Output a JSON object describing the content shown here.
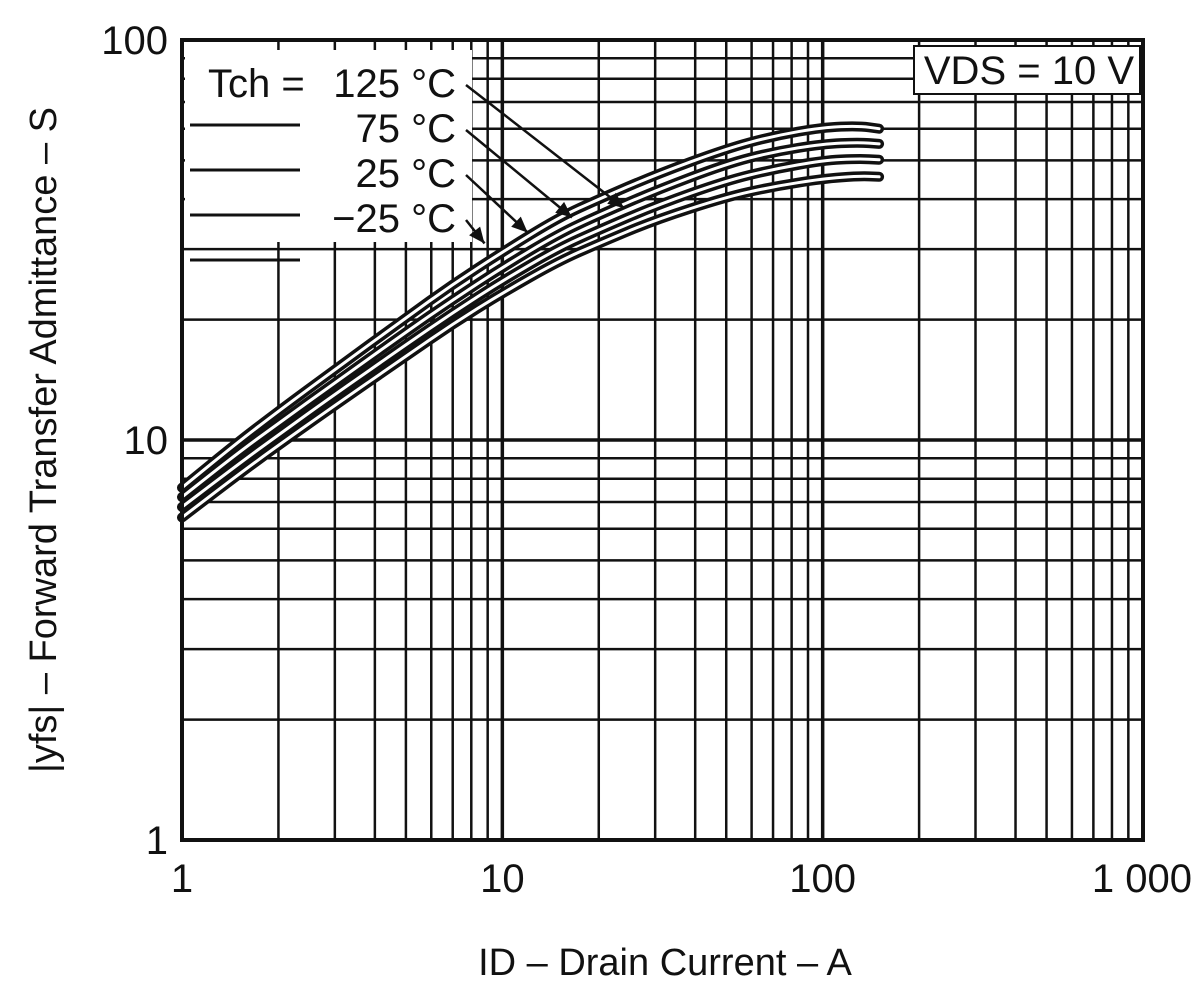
{
  "chart_data": {
    "type": "line",
    "title": "",
    "xlabel": "ID – Drain Current – A",
    "ylabel": "|yfs| – Forward Transfer Admittance – S",
    "x_scale": "log",
    "y_scale": "log",
    "xlim": [
      1,
      1000
    ],
    "ylim": [
      1,
      100
    ],
    "x_ticks": [
      1,
      10,
      100,
      1000
    ],
    "x_tick_labels": [
      "1",
      "10",
      "100",
      "1 000"
    ],
    "y_ticks": [
      1,
      10,
      100
    ],
    "y_tick_labels": [
      "1",
      "10",
      "100"
    ],
    "grid": true,
    "condition": "VDS = 10 V",
    "legend_title": "Tch =",
    "legend_placement": "top-left",
    "series": [
      {
        "name": "125 °C",
        "x": [
          1,
          1.5,
          2,
          3,
          5,
          7,
          10,
          15,
          20,
          30,
          50,
          70,
          100,
          130,
          150
        ],
        "y": [
          6.4,
          8.2,
          9.7,
          12.2,
          16.2,
          19.5,
          23.3,
          28.0,
          31.0,
          35.5,
          40.5,
          43.0,
          45.0,
          45.7,
          45.5
        ]
      },
      {
        "name": "75 °C",
        "x": [
          1,
          1.5,
          2,
          3,
          5,
          7,
          10,
          15,
          20,
          30,
          50,
          70,
          100,
          130,
          150
        ],
        "y": [
          6.8,
          8.7,
          10.3,
          13.0,
          17.3,
          20.8,
          25.0,
          30.2,
          33.5,
          38.5,
          44.5,
          47.5,
          50.0,
          50.5,
          50.2
        ]
      },
      {
        "name": "25 °C",
        "x": [
          1,
          1.5,
          2,
          3,
          5,
          7,
          10,
          15,
          20,
          30,
          50,
          70,
          100,
          130,
          150
        ],
        "y": [
          7.2,
          9.3,
          11.0,
          13.9,
          18.6,
          22.4,
          27.0,
          32.8,
          36.5,
          42.0,
          49.0,
          52.5,
          55.0,
          55.5,
          55.0
        ]
      },
      {
        "name": "−25 °C",
        "x": [
          1,
          1.5,
          2,
          3,
          5,
          7,
          10,
          15,
          20,
          30,
          50,
          70,
          100,
          130,
          150
        ],
        "y": [
          7.6,
          9.9,
          11.8,
          15.0,
          20.2,
          24.5,
          29.5,
          36.0,
          40.0,
          46.0,
          53.5,
          57.5,
          60.5,
          61.0,
          60.0
        ]
      }
    ],
    "legend_label_y_values": [
      70,
      60,
      51,
      43
    ],
    "leader_targets": [
      {
        "x": 24,
        "y": 38
      },
      {
        "x": 16.5,
        "y": 36
      },
      {
        "x": 12,
        "y": 33
      },
      {
        "x": 8.8,
        "y": 31
      }
    ],
    "colors": {
      "line": "#111111",
      "grid": "#111111",
      "background": "#ffffff"
    }
  }
}
